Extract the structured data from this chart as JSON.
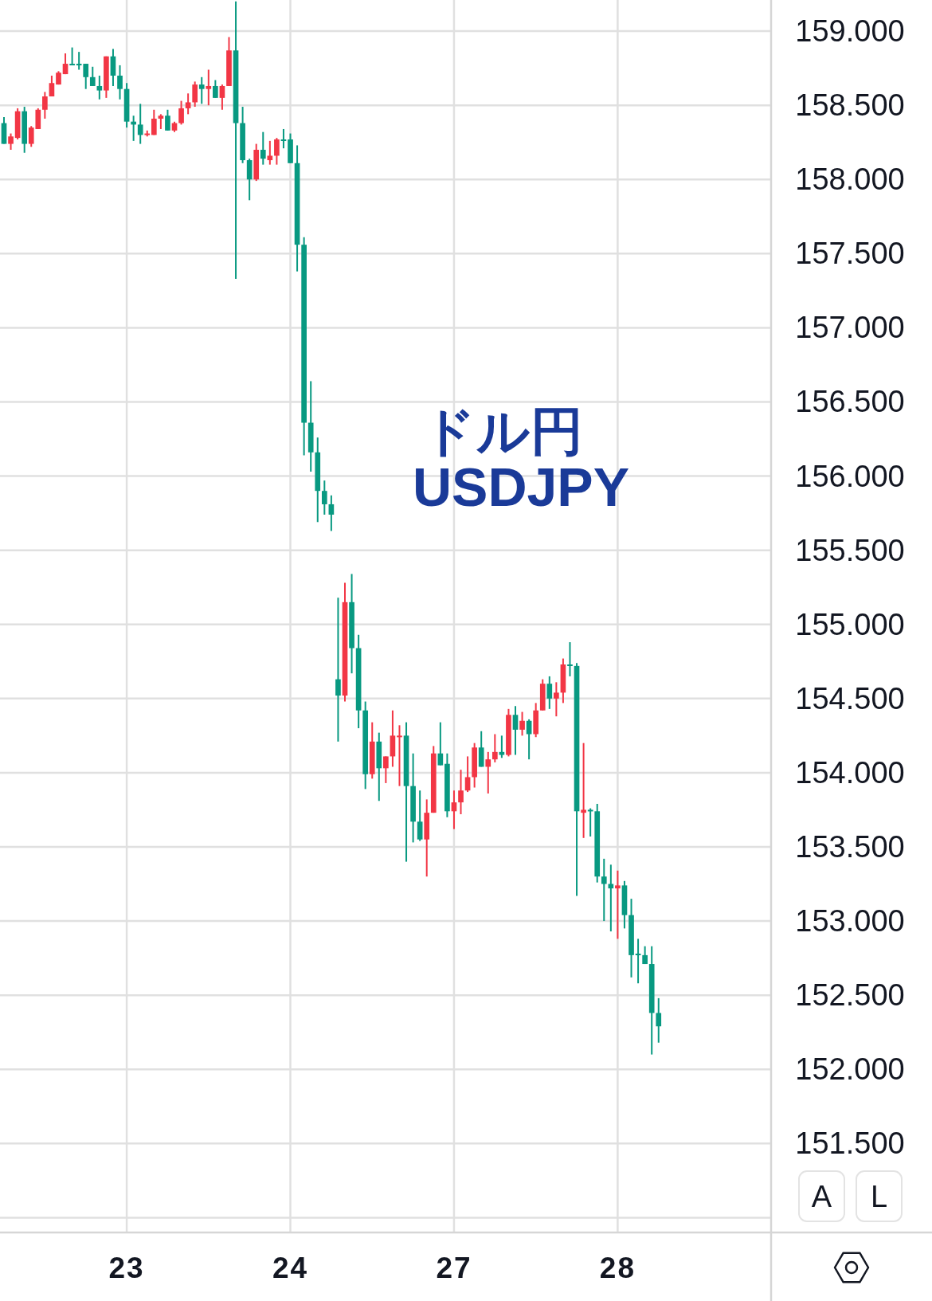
{
  "chart_data": {
    "type": "candlestick",
    "title": "ドル円",
    "subtitle": "USDJPY",
    "categories": [
      null,
      null,
      null,
      null,
      null,
      null,
      null,
      null,
      null,
      null,
      null,
      null,
      null,
      null,
      null,
      null,
      null,
      null,
      "23",
      null,
      null,
      null,
      null,
      null,
      null,
      null,
      null,
      null,
      null,
      null,
      null,
      null,
      null,
      null,
      null,
      null,
      null,
      null,
      null,
      null,
      null,
      null,
      "24",
      null,
      null,
      null,
      null,
      null,
      null,
      null,
      null,
      null,
      null,
      null,
      null,
      null,
      null,
      null,
      null,
      null,
      null,
      null,
      null,
      null,
      null,
      null,
      "27",
      null,
      null,
      null,
      null,
      null,
      null,
      null,
      null,
      null,
      null,
      null,
      null,
      null,
      null,
      null,
      null,
      null,
      null,
      null,
      null,
      null,
      null,
      null,
      "28",
      null,
      null,
      null,
      null,
      null,
      null
    ],
    "ohlc": [
      [
        158.38,
        158.42,
        158.24,
        158.24
      ],
      [
        158.24,
        158.31,
        158.2,
        158.29
      ],
      [
        158.28,
        158.48,
        158.27,
        158.46
      ],
      [
        158.46,
        158.49,
        158.18,
        158.24
      ],
      [
        158.24,
        158.36,
        158.22,
        158.35
      ],
      [
        158.34,
        158.48,
        158.34,
        158.47
      ],
      [
        158.47,
        158.59,
        158.41,
        158.56
      ],
      [
        158.56,
        158.7,
        158.56,
        158.65
      ],
      [
        158.64,
        158.73,
        158.64,
        158.72
      ],
      [
        158.71,
        158.85,
        158.71,
        158.78
      ],
      [
        158.78,
        158.89,
        158.77,
        158.77
      ],
      [
        158.78,
        158.86,
        158.74,
        158.77
      ],
      [
        158.78,
        158.78,
        158.61,
        158.69
      ],
      [
        158.69,
        158.76,
        158.63,
        158.63
      ],
      [
        158.63,
        158.7,
        158.54,
        158.6
      ],
      [
        158.6,
        158.83,
        158.55,
        158.83
      ],
      [
        158.83,
        158.88,
        158.63,
        158.7
      ],
      [
        158.7,
        158.77,
        158.54,
        158.61
      ],
      [
        158.61,
        158.65,
        158.35,
        158.39
      ],
      [
        158.39,
        158.43,
        158.26,
        158.37
      ],
      [
        158.37,
        158.51,
        158.24,
        158.3
      ],
      [
        158.3,
        158.33,
        158.29,
        158.31
      ],
      [
        158.3,
        158.47,
        158.3,
        158.41
      ],
      [
        158.41,
        158.44,
        158.34,
        158.43
      ],
      [
        158.43,
        158.47,
        158.33,
        158.33
      ],
      [
        158.33,
        158.39,
        158.32,
        158.38
      ],
      [
        158.38,
        158.53,
        158.37,
        158.48
      ],
      [
        158.48,
        158.58,
        158.44,
        158.52
      ],
      [
        158.52,
        158.66,
        158.49,
        158.64
      ],
      [
        158.64,
        158.69,
        158.51,
        158.61
      ],
      [
        158.61,
        158.74,
        158.5,
        158.63
      ],
      [
        158.63,
        158.67,
        158.55,
        158.55
      ],
      [
        158.55,
        158.64,
        158.47,
        158.63
      ],
      [
        158.63,
        158.96,
        158.63,
        158.87
      ],
      [
        158.87,
        159.2,
        157.33,
        158.38
      ],
      [
        158.38,
        158.49,
        158.11,
        158.13
      ],
      [
        158.13,
        158.14,
        157.86,
        158.0
      ],
      [
        158.0,
        158.24,
        157.99,
        158.2
      ],
      [
        158.2,
        158.32,
        158.1,
        158.14
      ],
      [
        158.13,
        158.26,
        158.1,
        158.16
      ],
      [
        158.16,
        158.28,
        158.1,
        158.27
      ],
      [
        158.27,
        158.34,
        158.21,
        158.26
      ],
      [
        158.27,
        158.31,
        158.11,
        158.11
      ],
      [
        158.11,
        158.23,
        157.38,
        157.56
      ],
      [
        157.56,
        157.61,
        156.14,
        156.36
      ],
      [
        156.36,
        156.64,
        156.03,
        156.16
      ],
      [
        156.16,
        156.26,
        155.69,
        155.9
      ],
      [
        155.9,
        155.97,
        155.74,
        155.81
      ],
      [
        155.81,
        155.87,
        155.63,
        155.74
      ],
      [
        154.63,
        155.18,
        154.21,
        154.52
      ],
      [
        154.52,
        155.28,
        154.48,
        155.15
      ],
      [
        155.15,
        155.34,
        154.67,
        154.84
      ],
      [
        154.84,
        154.93,
        154.3,
        154.42
      ],
      [
        154.42,
        154.48,
        153.89,
        153.99
      ],
      [
        153.99,
        154.34,
        153.96,
        154.21
      ],
      [
        154.21,
        154.27,
        153.81,
        154.03
      ],
      [
        154.03,
        154.11,
        153.93,
        154.11
      ],
      [
        154.11,
        154.42,
        154.04,
        154.25
      ],
      [
        154.24,
        154.32,
        153.91,
        154.25
      ],
      [
        154.25,
        154.34,
        153.4,
        153.91
      ],
      [
        153.91,
        154.13,
        153.53,
        153.67
      ],
      [
        153.67,
        153.88,
        153.54,
        153.55
      ],
      [
        153.55,
        153.82,
        153.3,
        153.73
      ],
      [
        153.73,
        154.18,
        153.73,
        154.13
      ],
      [
        154.13,
        154.34,
        154.05,
        154.05
      ],
      [
        154.06,
        154.13,
        153.7,
        153.74
      ],
      [
        153.74,
        153.88,
        153.62,
        153.8
      ],
      [
        153.8,
        154.02,
        153.72,
        153.88
      ],
      [
        153.88,
        154.11,
        153.87,
        153.97
      ],
      [
        153.97,
        154.2,
        153.9,
        154.17
      ],
      [
        154.17,
        154.28,
        154.04,
        154.04
      ],
      [
        154.04,
        154.14,
        153.86,
        154.09
      ],
      [
        154.09,
        154.26,
        154.07,
        154.14
      ],
      [
        154.14,
        154.25,
        154.1,
        154.12
      ],
      [
        154.12,
        154.43,
        154.11,
        154.39
      ],
      [
        154.39,
        154.45,
        154.12,
        154.29
      ],
      [
        154.29,
        154.41,
        154.25,
        154.35
      ],
      [
        154.35,
        154.36,
        154.09,
        154.26
      ],
      [
        154.26,
        154.47,
        154.24,
        154.42
      ],
      [
        154.42,
        154.63,
        154.42,
        154.6
      ],
      [
        154.6,
        154.65,
        154.43,
        154.5
      ],
      [
        154.5,
        154.61,
        154.38,
        154.54
      ],
      [
        154.54,
        154.77,
        154.47,
        154.73
      ],
      [
        154.73,
        154.88,
        154.65,
        154.72
      ],
      [
        154.72,
        154.74,
        153.17,
        153.74
      ],
      [
        153.73,
        154.2,
        153.56,
        153.75
      ],
      [
        153.75,
        153.76,
        153.57,
        153.74
      ],
      [
        153.74,
        153.79,
        153.26,
        153.3
      ],
      [
        153.3,
        153.42,
        153.0,
        153.25
      ],
      [
        153.25,
        153.38,
        152.93,
        153.22
      ],
      [
        153.22,
        153.34,
        152.88,
        153.24
      ],
      [
        153.24,
        153.27,
        152.95,
        153.04
      ],
      [
        153.04,
        153.15,
        152.62,
        152.77
      ],
      [
        152.78,
        152.88,
        152.58,
        152.77
      ],
      [
        152.77,
        152.83,
        152.71,
        152.71
      ],
      [
        152.71,
        152.83,
        152.1,
        152.38
      ],
      [
        152.38,
        152.48,
        152.18,
        152.29
      ]
    ],
    "colors": [
      "#089981",
      "#f23645",
      "#f23645",
      "#089981",
      "#f23645",
      "#f23645",
      "#f23645",
      "#f23645",
      "#f23645",
      "#f23645",
      "#089981",
      "#089981",
      "#089981",
      "#089981",
      "#089981",
      "#f23645",
      "#089981",
      "#089981",
      "#089981",
      "#089981",
      "#089981",
      "#f23645",
      "#f23645",
      "#f23645",
      "#089981",
      "#f23645",
      "#f23645",
      "#f23645",
      "#f23645",
      "#089981",
      "#f23645",
      "#089981",
      "#f23645",
      "#f23645",
      "#089981",
      "#089981",
      "#089981",
      "#f23645",
      "#089981",
      "#f23645",
      "#f23645",
      "#089981",
      "#089981",
      "#089981",
      "#089981",
      "#089981",
      "#089981",
      "#089981",
      "#089981",
      "#089981",
      "#f23645",
      "#089981",
      "#089981",
      "#089981",
      "#f23645",
      "#089981",
      "#f23645",
      "#f23645",
      "#f23645",
      "#089981",
      "#089981",
      "#089981",
      "#f23645",
      "#f23645",
      "#089981",
      "#089981",
      "#f23645",
      "#f23645",
      "#f23645",
      "#f23645",
      "#089981",
      "#f23645",
      "#f23645",
      "#089981",
      "#f23645",
      "#089981",
      "#f23645",
      "#089981",
      "#f23645",
      "#f23645",
      "#089981",
      "#f23645",
      "#f23645",
      "#089981",
      "#089981",
      "#f23645",
      "#089981",
      "#089981",
      "#089981",
      "#089981",
      "#f23645",
      "#089981",
      "#089981",
      "#089981",
      "#089981",
      "#089981",
      "#089981"
    ],
    "ylim": [
      150.9,
      159.21
    ],
    "yticks": [
      {
        "value": 151,
        "label": null
      },
      {
        "value": 151.5,
        "label": "151.500"
      },
      {
        "value": 152,
        "label": "152.000"
      },
      {
        "value": 152.5,
        "label": "152.500"
      },
      {
        "value": 153,
        "label": "153.000"
      },
      {
        "value": 153.5,
        "label": "153.500"
      },
      {
        "value": 154,
        "label": "154.000"
      },
      {
        "value": 154.5,
        "label": "154.500"
      },
      {
        "value": 155,
        "label": "155.000"
      },
      {
        "value": 155.5,
        "label": "155.500"
      },
      {
        "value": 156,
        "label": "156.000"
      },
      {
        "value": 156.5,
        "label": "156.500"
      },
      {
        "value": 157,
        "label": "157.000"
      },
      {
        "value": 157.5,
        "label": "157.500"
      },
      {
        "value": 158,
        "label": "158.000"
      },
      {
        "value": 158.5,
        "label": "158.500"
      },
      {
        "value": 159,
        "label": "159.000"
      }
    ],
    "grid": true,
    "annotations": [
      "A",
      "L"
    ]
  }
}
